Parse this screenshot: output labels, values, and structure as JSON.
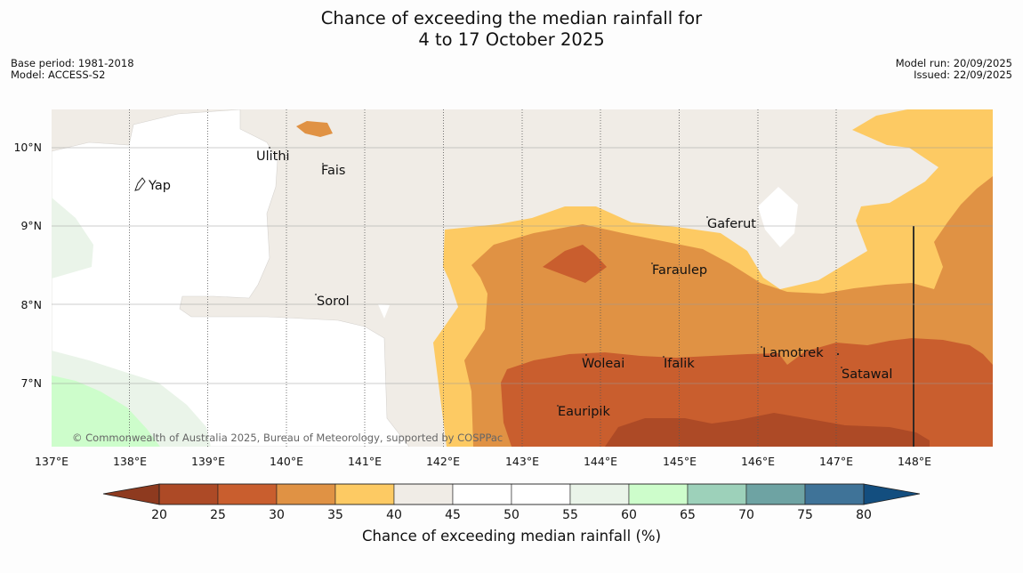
{
  "title_line1": "Chance of exceeding the median rainfall for",
  "title_line2": "4 to 17 October 2025",
  "meta_left": {
    "base_period": "Base period: 1981-2018",
    "model": "Model: ACCESS-S2"
  },
  "meta_right": {
    "model_run": "Model run: 20/09/2025",
    "issued": "Issued: 22/09/2025"
  },
  "map": {
    "longitude_ticks": [
      "137°E",
      "138°E",
      "139°E",
      "140°E",
      "141°E",
      "142°E",
      "143°E",
      "144°E",
      "145°E",
      "146°E",
      "147°E",
      "148°E"
    ],
    "latitude_ticks": [
      "10°N",
      "9°N",
      "8°N",
      "7°N"
    ],
    "places": [
      {
        "name": "Yap"
      },
      {
        "name": "Ulithi"
      },
      {
        "name": "Fais"
      },
      {
        "name": "Gaferut"
      },
      {
        "name": "Faraulep"
      },
      {
        "name": "Sorol"
      },
      {
        "name": "Woleai"
      },
      {
        "name": "Ifalik"
      },
      {
        "name": "Lamotrek"
      },
      {
        "name": "Satawal"
      },
      {
        "name": "Eauripik"
      }
    ],
    "copyright": "© Commonwealth of Australia 2025, Bureau of Meteorology, supported by COSPPac"
  },
  "colorbar": {
    "title": "Chance of exceeding median rainfall (%)",
    "tick_labels": [
      "20",
      "25",
      "30",
      "35",
      "40",
      "45",
      "50",
      "55",
      "60",
      "65",
      "70",
      "75",
      "80"
    ],
    "under_color": "#8e3a1f",
    "over_color": "#134e7f",
    "bins": [
      {
        "color": "#ad4a26"
      },
      {
        "color": "#c95e2e"
      },
      {
        "color": "#e09244"
      },
      {
        "color": "#fdca63"
      },
      {
        "color": "#f0ece6"
      },
      {
        "color": "#ffffff"
      },
      {
        "color": "#ffffff"
      },
      {
        "color": "#eaf4e9"
      },
      {
        "color": "#cdfdcb"
      },
      {
        "color": "#9dd1ba"
      },
      {
        "color": "#6ea3a3"
      },
      {
        "color": "#3f7398"
      }
    ]
  }
}
